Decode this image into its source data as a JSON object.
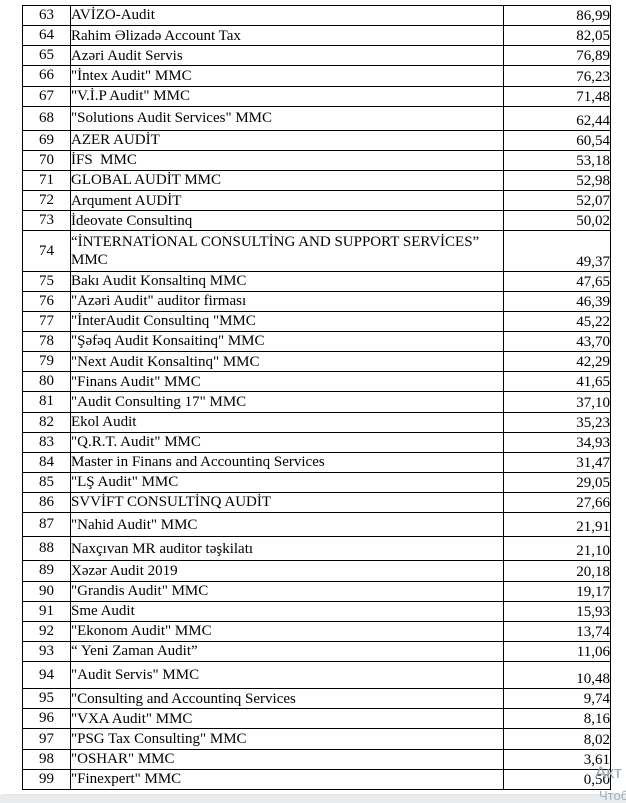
{
  "document": {
    "table": {
      "rows": [
        {
          "rank": "63",
          "name": "AVİZO-Audit",
          "score": "86,99"
        },
        {
          "rank": "64",
          "name": "Rahim Əlizadə Account Tax",
          "score": "82,05"
        },
        {
          "rank": "65",
          "name": "Azəri Audit Servis",
          "score": "76,89"
        },
        {
          "rank": "66",
          "name": "\"İntex Audit\" MMC",
          "score": "76,23"
        },
        {
          "rank": "67",
          "name": "\"V.İ.P Audit\" MMC",
          "score": "71,48"
        },
        {
          "rank": "68",
          "name": "\"Solutions Audit Services\" MMC",
          "score": "62,44",
          "size": "tall"
        },
        {
          "rank": "69",
          "name": "AZER AUDİT",
          "score": "60,54"
        },
        {
          "rank": "70",
          "name": "İFS  MMC",
          "score": "53,18"
        },
        {
          "rank": "71",
          "name": "GLOBAL AUDİT MMC",
          "score": "52,98"
        },
        {
          "rank": "72",
          "name": "Arqument AUDİT",
          "score": "52,07"
        },
        {
          "rank": "73",
          "name": "İdeovate Consultinq",
          "score": "50,02"
        },
        {
          "rank": "74",
          "name": "“İNTERNATİONAL CONSULTİNG AND SUPPORT SERVİCES” MMC",
          "score": "49,37",
          "size": "double"
        },
        {
          "rank": "75",
          "name": "Bakı Audit Konsaltinq MMC",
          "score": "47,65"
        },
        {
          "rank": "76",
          "name": "\"Azəri Audit\" auditor firması",
          "score": "46,39"
        },
        {
          "rank": "77",
          "name": "\"İnterAudit Consultinq \"MMC",
          "score": "45,22"
        },
        {
          "rank": "78",
          "name": "\"Şəfəq Audit Konsaitinq\" MMC",
          "score": "43,70"
        },
        {
          "rank": "79",
          "name": "\"Next Audit Konsaltinq\" MMC",
          "score": "42,29"
        },
        {
          "rank": "80",
          "name": "\"Finans Audit\" MMC",
          "score": "41,65"
        },
        {
          "rank": "81",
          "name": "\"Audit Consulting 17\" MMC",
          "score": "37,10"
        },
        {
          "rank": "82",
          "name": "Ekol Audit",
          "score": "35,23"
        },
        {
          "rank": "83",
          "name": "\"Q.R.T. Audit\" MMC",
          "score": "34,93"
        },
        {
          "rank": "84",
          "name": "Master in Finans and Accountinq Services",
          "score": "31,47"
        },
        {
          "rank": "85",
          "name": "\"LŞ Audit\" MMC",
          "score": "29,05"
        },
        {
          "rank": "86",
          "name": "SVVİFT CONSULTİNQ AUDİT",
          "score": "27,66"
        },
        {
          "rank": "87",
          "name": "\"Nahid Audit\" MMC",
          "score": "21,91",
          "size": "tall"
        },
        {
          "rank": "88",
          "name": "Naxçıvan MR auditor təşkilatı",
          "score": "21,10",
          "size": "tall"
        },
        {
          "rank": "89",
          "name": "Xəzər Audit 2019",
          "score": "20,18"
        },
        {
          "rank": "90",
          "name": "\"Grandis Audit\" MMC",
          "score": "19,17"
        },
        {
          "rank": "91",
          "name": "Sme Audit",
          "score": "15,93"
        },
        {
          "rank": "92",
          "name": "\"Ekonom Audit\" MMC",
          "score": "13,74"
        },
        {
          "rank": "93",
          "name": "“ Yeni Zaman Audit”",
          "score": "11,06"
        },
        {
          "rank": "94",
          "name": "\"Audit Servis\" MMC",
          "score": "10,48",
          "size": "xtall"
        },
        {
          "rank": "95",
          "name": "\"Consulting and Accountinq Services",
          "score": "9,74"
        },
        {
          "rank": "96",
          "name": "\"VXA Audit\" MMC",
          "score": "8,16"
        },
        {
          "rank": "97",
          "name": "\"PSG Tax Consulting\" MMC",
          "score": "8,02"
        },
        {
          "rank": "98",
          "name": "\"OSHAR\" MMC",
          "score": "3,61"
        },
        {
          "rank": "99",
          "name": "\"Finexpert\" MMC",
          "score": "0,50"
        }
      ]
    }
  },
  "watermark": {
    "line1": "Акт",
    "line2": "Чтоб",
    "color": "#99a3ac"
  },
  "colors": {
    "page_background": "#ffffff",
    "table_border": "#000000",
    "bottom_bar": "#e9ebec"
  }
}
